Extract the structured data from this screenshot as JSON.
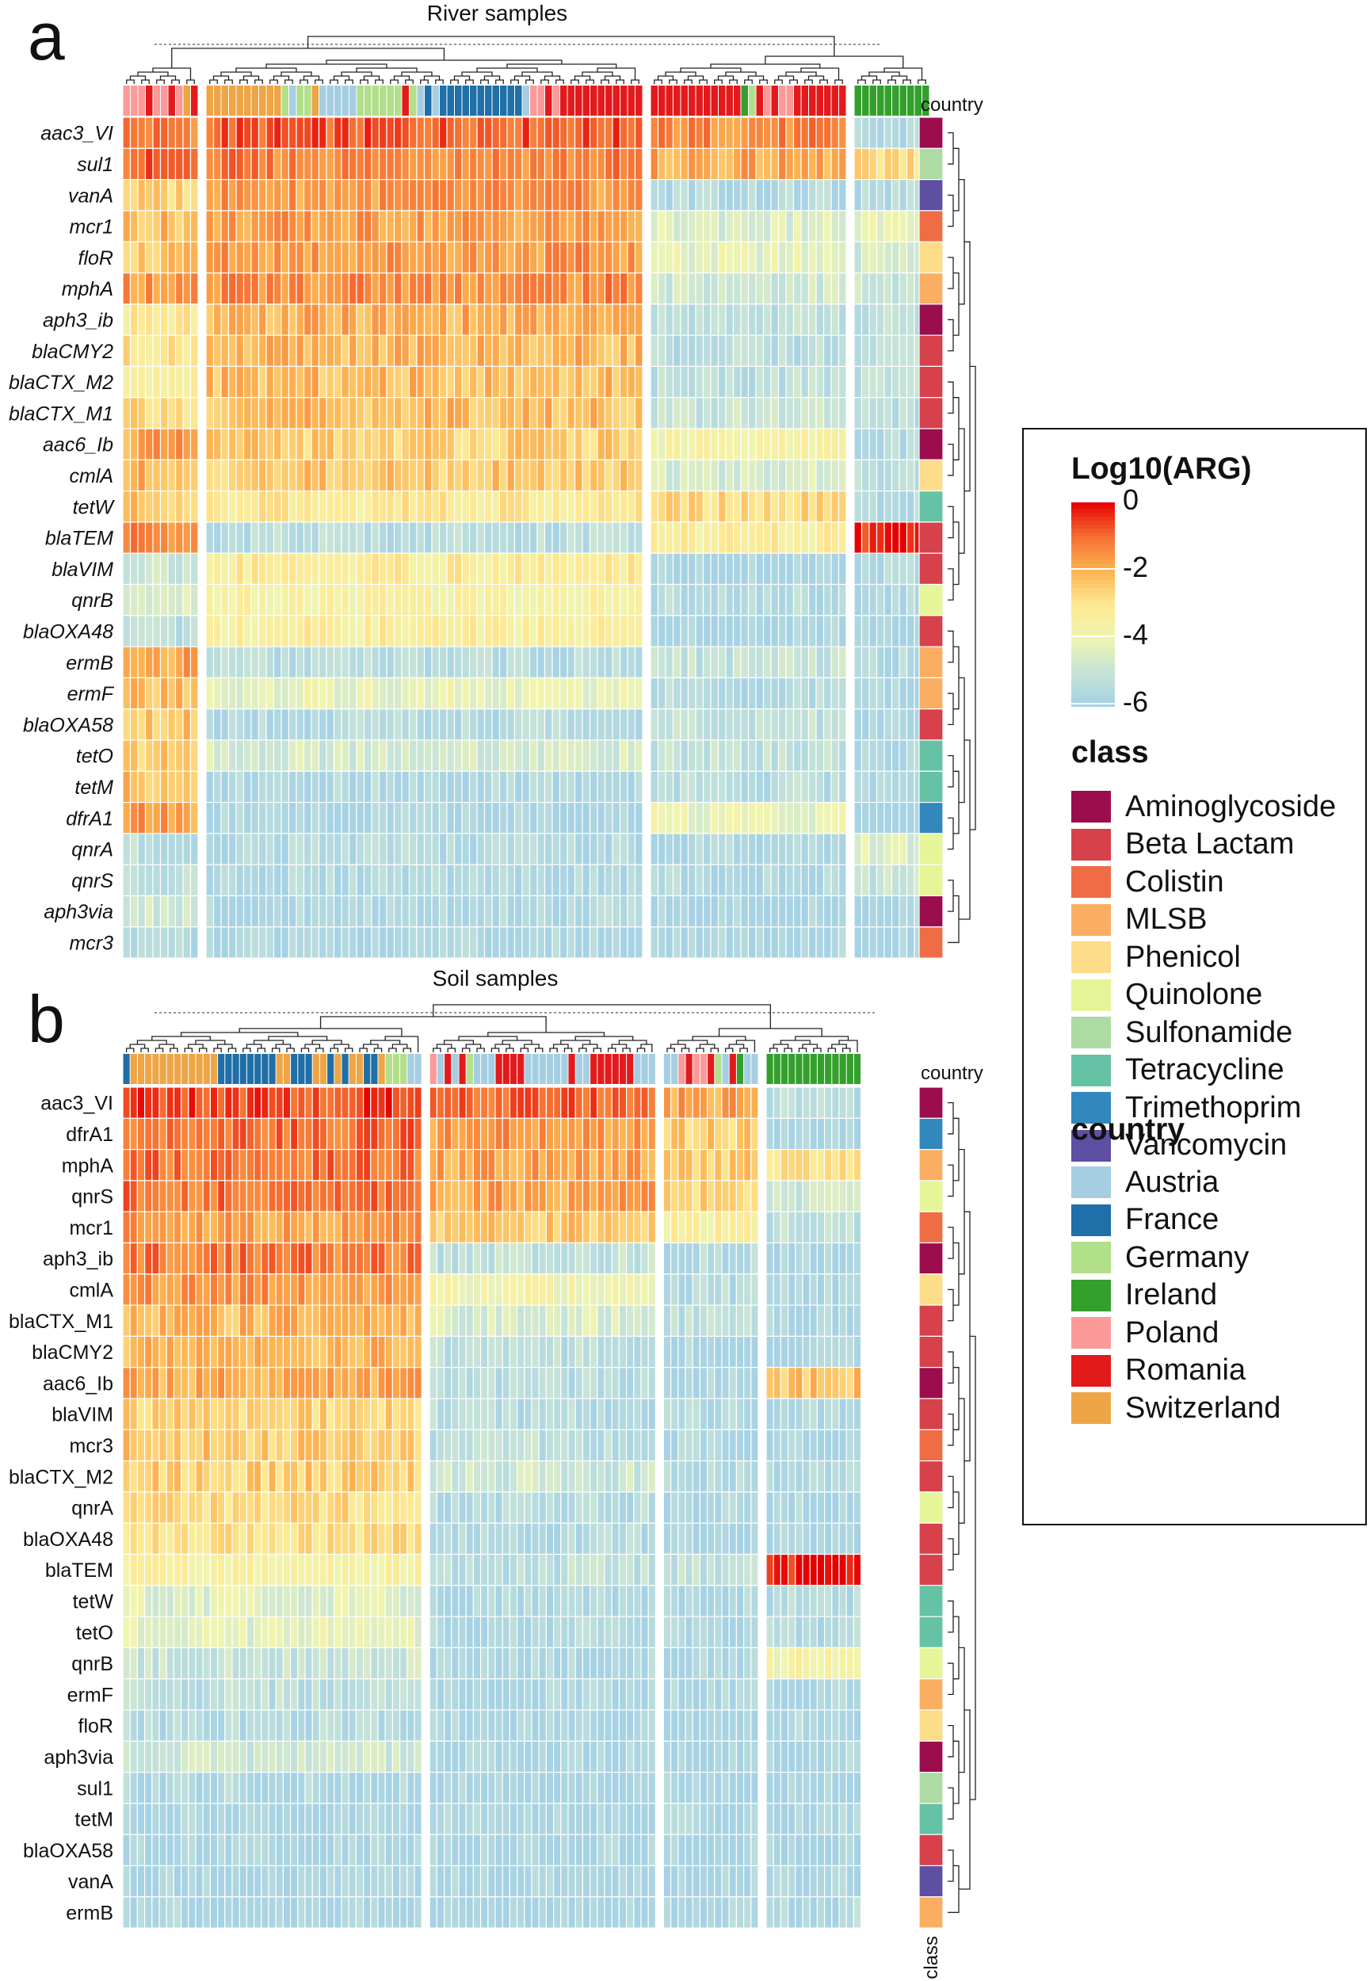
{
  "chart_data": [
    {
      "type": "heatmap",
      "panel_label": "a",
      "title": "River samples",
      "annotation_label": "country",
      "value_scale": "Log10(ARG)",
      "genes": [
        "aac3_VI",
        "sul1",
        "vanA",
        "mcr1",
        "floR",
        "mphA",
        "aph3_ib",
        "blaCMY2",
        "blaCTX_M2",
        "blaCTX_M1",
        "aac6_Ib",
        "cmlA",
        "tetW",
        "blaTEM",
        "blaVIM",
        "qnrB",
        "blaOXA48",
        "ermB",
        "ermF",
        "blaOXA58",
        "tetO",
        "tetM",
        "dfrA1",
        "qnrA",
        "qnrS",
        "aph3via",
        "mcr3"
      ],
      "gene_class": [
        "Aminoglycoside",
        "Sulfonamide",
        "Vancomycin",
        "Colistin",
        "Phenicol",
        "MLSB",
        "Aminoglycoside",
        "Beta Lactam",
        "Beta Lactam",
        "Beta Lactam",
        "Aminoglycoside",
        "Phenicol",
        "Tetracycline",
        "Beta Lactam",
        "Beta Lactam",
        "Quinolone",
        "Beta Lactam",
        "MLSB",
        "MLSB",
        "Beta Lactam",
        "Tetracycline",
        "Tetracycline",
        "Trimethoprim",
        "Quinolone",
        "Quinolone",
        "Aminoglycoside",
        "Colistin"
      ],
      "sample_groups": [
        {
          "n": 10,
          "countries": [
            "Poland",
            "Poland",
            "Poland",
            "Romania",
            "Poland",
            "Poland",
            "Romania",
            "Poland",
            "Switzerland",
            "Romania"
          ],
          "mean_log10": [
            -1.2,
            -0.9,
            -2.6,
            -2.2,
            -2.4,
            -1.5,
            -3.2,
            -3.0,
            -3.4,
            -2.8,
            -1.8,
            -2.1,
            -2.4,
            -1.4,
            -4.8,
            -4.6,
            -5.5,
            -1.8,
            -2.2,
            -2.3,
            -2.5,
            -2.2,
            -1.7,
            -5.3,
            -5.2,
            -4.8,
            -5.6
          ]
        },
        {
          "n": 58,
          "countries": [
            "Switzerland",
            "Switzerland",
            "Switzerland",
            "Switzerland",
            "Switzerland",
            "Switzerland",
            "Switzerland",
            "Switzerland",
            "Switzerland",
            "Switzerland",
            "Germany",
            "Austria",
            "Germany",
            "Germany",
            "Switzerland",
            "Austria",
            "Austria",
            "Austria",
            "Austria",
            "Austria",
            "Germany",
            "Germany",
            "Germany",
            "Germany",
            "Germany",
            "Germany",
            "Romania",
            "Germany",
            "Austria",
            "France",
            "Austria",
            "France",
            "France",
            "France",
            "France",
            "France",
            "France",
            "France",
            "France",
            "France",
            "France",
            "France",
            "Austria",
            "Poland",
            "Poland",
            "Romania",
            "Poland",
            "Romania",
            "Romania",
            "Romania",
            "Romania",
            "Romania",
            "Romania",
            "Romania",
            "Romania",
            "Romania",
            "Romania",
            "Romania"
          ],
          "mean_log10": [
            -0.8,
            -1.3,
            -1.6,
            -1.7,
            -1.6,
            -1.4,
            -2.0,
            -2.1,
            -2.2,
            -2.2,
            -2.5,
            -2.4,
            -3.2,
            -5.4,
            -3.3,
            -3.6,
            -3.4,
            -5.5,
            -4.2,
            -5.5,
            -4.7,
            -5.7,
            -5.8,
            -5.6,
            -5.7,
            -5.7,
            -5.8
          ]
        },
        {
          "n": 26,
          "countries": [
            "Romania",
            "Romania",
            "Romania",
            "Romania",
            "Romania",
            "Romania",
            "Romania",
            "Romania",
            "Romania",
            "Romania",
            "Romania",
            "Romania",
            "Ireland",
            "Germany",
            "Romania",
            "Poland",
            "Romania",
            "Poland",
            "Poland",
            "Romania",
            "Romania",
            "Romania",
            "Romania",
            "Romania",
            "Romania",
            "Romania"
          ],
          "mean_log10": [
            -1.4,
            -1.9,
            -5.6,
            -4.5,
            -4.3,
            -4.8,
            -5.3,
            -5.4,
            -5.3,
            -5.0,
            -3.8,
            -4.6,
            -2.8,
            -3.4,
            -5.9,
            -5.5,
            -5.9,
            -5.1,
            -5.5,
            -5.2,
            -5.2,
            -5.4,
            -4.2,
            -5.8,
            -5.7,
            -5.9,
            -5.9
          ]
        },
        {
          "n": 10,
          "countries": [
            "Ireland",
            "Ireland",
            "Ireland",
            "Ireland",
            "Ireland",
            "Ireland",
            "Ireland",
            "Ireland",
            "Ireland",
            "Ireland"
          ],
          "mean_log10": [
            -5.8,
            -2.9,
            -5.6,
            -4.2,
            -4.8,
            -5.0,
            -5.4,
            -5.4,
            -5.3,
            -5.3,
            -5.6,
            -5.3,
            -5.7,
            -0.3,
            -5.6,
            -5.8,
            -5.9,
            -5.7,
            -5.9,
            -5.9,
            -5.9,
            -5.8,
            -5.9,
            -4.4,
            -5.1,
            -5.9,
            -5.9
          ]
        }
      ]
    },
    {
      "type": "heatmap",
      "panel_label": "b",
      "title": "Soil samples",
      "annotation_label": "country",
      "class_label": "class",
      "value_scale": "Log10(ARG)",
      "genes": [
        "aac3_VI",
        "dfrA1",
        "mphA",
        "qnrS",
        "mcr1",
        "aph3_ib",
        "cmlA",
        "blaCTX_M1",
        "blaCMY2",
        "aac6_Ib",
        "blaVIM",
        "mcr3",
        "blaCTX_M2",
        "qnrA",
        "blaOXA48",
        "blaTEM",
        "tetW",
        "tetO",
        "qnrB",
        "ermF",
        "floR",
        "aph3via",
        "sul1",
        "tetM",
        "blaOXA58",
        "vanA",
        "ermB"
      ],
      "gene_class": [
        "Aminoglycoside",
        "Trimethoprim",
        "MLSB",
        "Quinolone",
        "Colistin",
        "Aminoglycoside",
        "Phenicol",
        "Beta Lactam",
        "Beta Lactam",
        "Aminoglycoside",
        "Beta Lactam",
        "Colistin",
        "Beta Lactam",
        "Quinolone",
        "Beta Lactam",
        "Beta Lactam",
        "Tetracycline",
        "Tetracycline",
        "Quinolone",
        "MLSB",
        "Phenicol",
        "Aminoglycoside",
        "Sulfonamide",
        "Tetracycline",
        "Beta Lactam",
        "Vancomycin",
        "MLSB"
      ],
      "sample_groups": [
        {
          "n": 41,
          "countries": [
            "France",
            "Switzerland",
            "Switzerland",
            "Switzerland",
            "Switzerland",
            "Switzerland",
            "Switzerland",
            "Switzerland",
            "Switzerland",
            "Switzerland",
            "Switzerland",
            "Switzerland",
            "Switzerland",
            "France",
            "France",
            "France",
            "France",
            "France",
            "France",
            "France",
            "France",
            "Switzerland",
            "Switzerland",
            "France",
            "France",
            "France",
            "Switzerland",
            "Switzerland",
            "France",
            "Switzerland",
            "France",
            "Switzerland",
            "Switzerland",
            "France",
            "France",
            "Switzerland",
            "Germany",
            "Germany",
            "Germany",
            "Austria",
            "Austria"
          ],
          "mean_log10": [
            -0.6,
            -1.0,
            -1.1,
            -1.1,
            -1.7,
            -1.2,
            -1.6,
            -2.1,
            -2.1,
            -1.9,
            -2.6,
            -2.4,
            -2.5,
            -2.8,
            -2.9,
            -3.6,
            -4.4,
            -4.3,
            -5.0,
            -5.3,
            -5.5,
            -4.9,
            -5.7,
            -5.9,
            -5.9,
            -5.9,
            -5.8
          ]
        },
        {
          "n": 31,
          "countries": [
            "Poland",
            "Austria",
            "Romania",
            "Austria",
            "Romania",
            "Germany",
            "Austria",
            "Austria",
            "Austria",
            "Romania",
            "Romania",
            "Romania",
            "Romania",
            "Austria",
            "Austria",
            "Austria",
            "Austria",
            "Austria",
            "Austria",
            "Romania",
            "Austria",
            "Austria",
            "Romania",
            "Romania",
            "Romania",
            "Romania",
            "Romania",
            "Romania",
            "Austria",
            "Austria",
            "Austria"
          ],
          "mean_log10": [
            -0.9,
            -1.6,
            -1.8,
            -1.8,
            -2.4,
            -5.2,
            -3.9,
            -4.6,
            -5.3,
            -5.4,
            -5.5,
            -5.3,
            -4.9,
            -5.5,
            -5.6,
            -5.3,
            -5.7,
            -5.7,
            -5.8,
            -5.8,
            -5.9,
            -5.9,
            -5.9,
            -5.8,
            -5.9,
            -5.9,
            -5.9
          ]
        },
        {
          "n": 13,
          "countries": [
            "Austria",
            "Austria",
            "Poland",
            "Romania",
            "Poland",
            "Poland",
            "Romania",
            "Germany",
            "Austria",
            "Romania",
            "Ireland",
            "Austria",
            "Austria"
          ],
          "mean_log10": [
            -1.8,
            -2.5,
            -2.4,
            -2.6,
            -3.4,
            -5.5,
            -5.5,
            -5.4,
            -5.7,
            -5.8,
            -5.7,
            -5.7,
            -5.6,
            -5.8,
            -5.9,
            -5.3,
            -5.6,
            -5.7,
            -5.8,
            -5.8,
            -5.9,
            -5.9,
            -5.9,
            -5.9,
            -5.9,
            -5.9,
            -5.8
          ]
        },
        {
          "n": 13,
          "countries": [
            "Ireland",
            "Ireland",
            "Ireland",
            "Ireland",
            "Ireland",
            "Ireland",
            "Ireland",
            "Ireland",
            "Ireland",
            "Ireland",
            "Ireland",
            "Ireland",
            "Ireland"
          ],
          "mean_log10": [
            -5.4,
            -5.8,
            -3.0,
            -4.8,
            -5.3,
            -5.8,
            -5.7,
            -5.8,
            -5.8,
            -2.3,
            -5.7,
            -5.9,
            -5.8,
            -5.8,
            -5.9,
            -0.3,
            -5.5,
            -5.6,
            -3.8,
            -5.8,
            -5.7,
            -5.8,
            -5.9,
            -5.9,
            -5.9,
            -5.9,
            -5.6
          ]
        }
      ]
    }
  ],
  "legend": {
    "colorbar_title": "Log10(ARG)",
    "colorbar_ticks": [
      {
        "label": "0",
        "value": 0
      },
      {
        "label": "-2",
        "value": -2
      },
      {
        "label": "-4",
        "value": -4
      },
      {
        "label": "-6",
        "value": -6
      }
    ],
    "class_title": "class",
    "classes": [
      {
        "label": "Aminoglycoside",
        "color": "#9B0D4D"
      },
      {
        "label": "Beta Lactam",
        "color": "#D6414C"
      },
      {
        "label": "Colistin",
        "color": "#F06C45"
      },
      {
        "label": "MLSB",
        "color": "#FBAE61"
      },
      {
        "label": "Phenicol",
        "color": "#FDDD8A"
      },
      {
        "label": "Quinolone",
        "color": "#E6F598"
      },
      {
        "label": "Sulfonamide",
        "color": "#AEDBA3"
      },
      {
        "label": "Tetracycline",
        "color": "#66C2A5"
      },
      {
        "label": "Trimethoprim",
        "color": "#3288BD"
      },
      {
        "label": "Vancomycin",
        "color": "#5E4FA2"
      }
    ],
    "country_title": "country",
    "countries": [
      {
        "label": "Austria",
        "color": "#A6CEE3"
      },
      {
        "label": "France",
        "color": "#1F6FA8"
      },
      {
        "label": "Germany",
        "color": "#B2DF8A"
      },
      {
        "label": "Ireland",
        "color": "#33A02C"
      },
      {
        "label": "Poland",
        "color": "#FB9A99"
      },
      {
        "label": "Romania",
        "color": "#E31A1C"
      },
      {
        "label": "Switzerland",
        "color": "#EDA546"
      }
    ]
  }
}
